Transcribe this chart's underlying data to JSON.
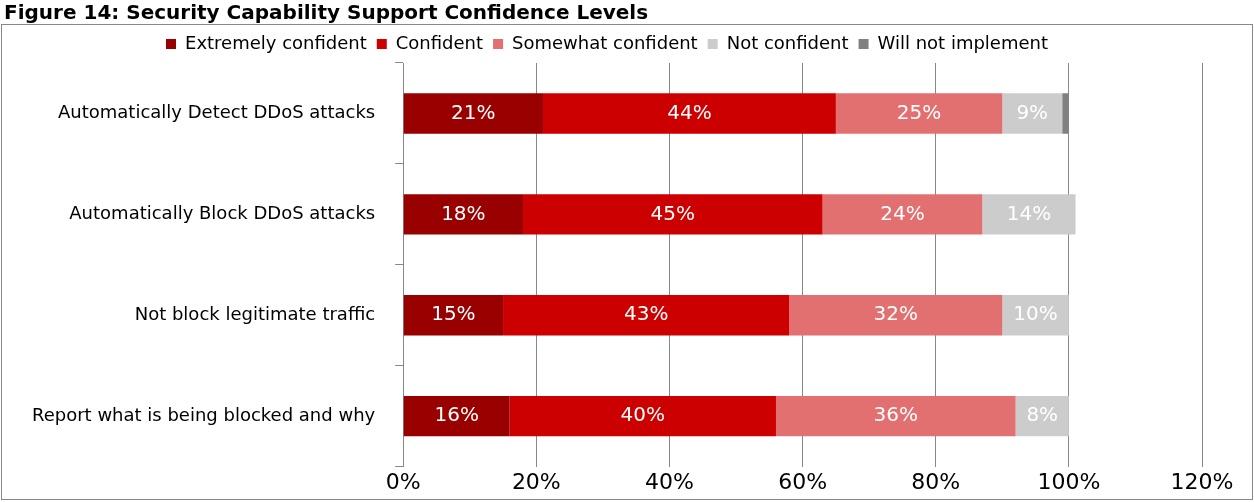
{
  "chart_data": {
    "type": "bar",
    "orientation": "horizontal",
    "stacked": true,
    "title": "Figure 14: Security Capability Support Confidence Levels",
    "categories": [
      "Automatically Detect DDoS attacks",
      "Automatically Block DDoS attacks",
      "Not block legitimate traffic",
      "Report what is being blocked and why"
    ],
    "series": [
      {
        "name": "Extremely confident",
        "color": "#990000",
        "values": [
          21,
          18,
          15,
          16
        ],
        "value_labels": [
          "21%",
          "18%",
          "15%",
          "16%"
        ]
      },
      {
        "name": "Confident",
        "color": "#cc0000",
        "values": [
          44,
          45,
          43,
          40
        ],
        "value_labels": [
          "44%",
          "45%",
          "43%",
          "40%"
        ]
      },
      {
        "name": "Somewhat confident",
        "color": "#e37070",
        "values": [
          25,
          24,
          32,
          36
        ],
        "value_labels": [
          "25%",
          "24%",
          "32%",
          "36%"
        ]
      },
      {
        "name": "Not confident",
        "color": "#cccccc",
        "values": [
          9,
          14,
          10,
          8
        ],
        "value_labels": [
          "9%",
          "14%",
          "10%",
          "8%"
        ]
      },
      {
        "name": "Will not implement",
        "color": "#808080",
        "values": [
          1,
          null,
          null,
          null
        ]
      }
    ],
    "xlim": [
      0,
      120
    ],
    "xticks": [
      {
        "value": 0,
        "label": "0%"
      },
      {
        "value": 20,
        "label": "20%"
      },
      {
        "value": 40,
        "label": "40%"
      },
      {
        "value": 60,
        "label": "60%"
      },
      {
        "value": 80,
        "label": "80%"
      },
      {
        "value": 100,
        "label": "100%"
      },
      {
        "value": 120,
        "label": "120%"
      }
    ],
    "grid": "x",
    "legend": "top"
  }
}
